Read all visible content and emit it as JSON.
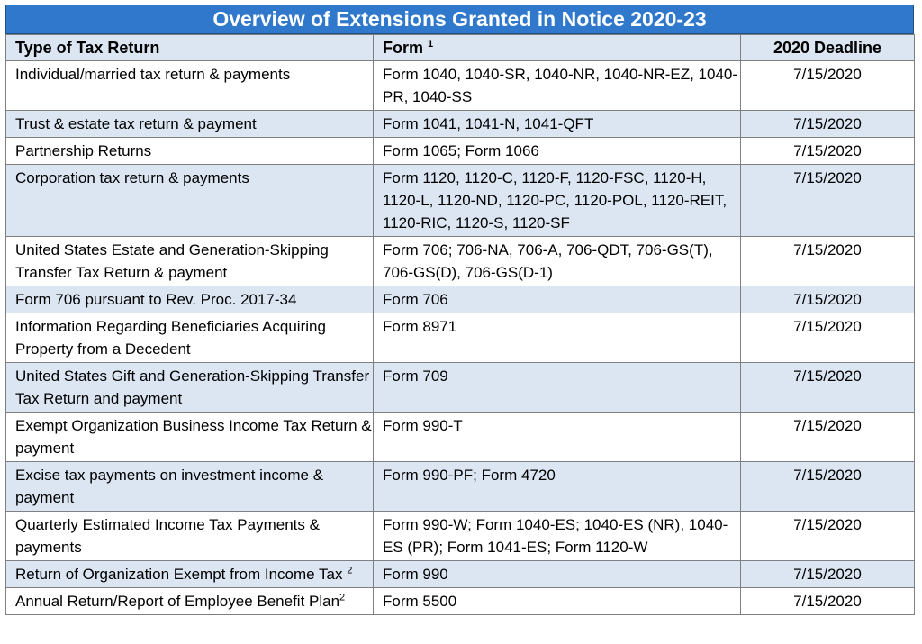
{
  "title": "Overview of Extensions Granted in Notice 2020-23",
  "headers": {
    "type": "Type of Tax Return",
    "form": "Form",
    "form_sup": "1",
    "deadline": "2020 Deadline"
  },
  "rows": [
    {
      "type": "Individual/married tax return & payments",
      "type_sup": "",
      "form": "Form 1040, 1040-SR, 1040-NR, 1040-NR-EZ, 1040-PR, 1040-SS",
      "deadline": "7/15/2020"
    },
    {
      "type": "Trust & estate tax return & payment",
      "type_sup": "",
      "form": "Form 1041, 1041-N, 1041-QFT",
      "deadline": "7/15/2020"
    },
    {
      "type": "Partnership Returns",
      "type_sup": "",
      "form": "Form 1065; Form 1066",
      "deadline": "7/15/2020"
    },
    {
      "type": "Corporation tax return & payments",
      "type_sup": "",
      "form": "Form 1120, 1120-C, 1120-F, 1120-FSC, 1120-H, 1120-L, 1120-ND, 1120-PC, 1120-POL, 1120-REIT, 1120-RIC, 1120-S, 1120-SF",
      "deadline": "7/15/2020"
    },
    {
      "type": "United States Estate and Generation-Skipping Transfer Tax Return & payment",
      "type_sup": "",
      "form": "Form 706; 706-NA, 706-A, 706-QDT, 706-GS(T), 706-GS(D), 706-GS(D-1)",
      "deadline": "7/15/2020"
    },
    {
      "type": "Form 706 pursuant to Rev. Proc. 2017-34",
      "type_sup": "",
      "form": "Form 706",
      "deadline": "7/15/2020"
    },
    {
      "type": "Information Regarding Beneficiaries Acquiring Property from a Decedent",
      "type_sup": "",
      "form": "Form 8971",
      "deadline": "7/15/2020"
    },
    {
      "type": "United States Gift and Generation-Skipping Transfer Tax Return and payment",
      "type_sup": "",
      "form": "Form 709",
      "deadline": "7/15/2020"
    },
    {
      "type": "Exempt Organization Business Income Tax Return & payment",
      "type_sup": "",
      "form": "Form 990-T",
      "deadline": "7/15/2020"
    },
    {
      "type": "Excise tax payments on investment income & payment",
      "type_sup": "",
      "form": "Form 990-PF; Form 4720",
      "deadline": "7/15/2020"
    },
    {
      "type": "Quarterly Estimated Income Tax Payments & payments",
      "type_sup": "",
      "form": "Form 990-W; Form 1040-ES; 1040-ES (NR), 1040-ES (PR); Form 1041-ES; Form 1120-W",
      "deadline": "7/15/2020"
    },
    {
      "type": "Return of Organization Exempt from Income Tax ",
      "type_sup": "2",
      "form": "Form 990",
      "deadline": "7/15/2020"
    },
    {
      "type": "Annual Return/Report of Employee Benefit Plan",
      "type_sup": "2",
      "form": "Form 5500",
      "deadline": "7/15/2020"
    }
  ],
  "colors": {
    "title_bg": "#2f78cc",
    "shade_row": "#dce6f2",
    "border": "#7f7f7f"
  }
}
